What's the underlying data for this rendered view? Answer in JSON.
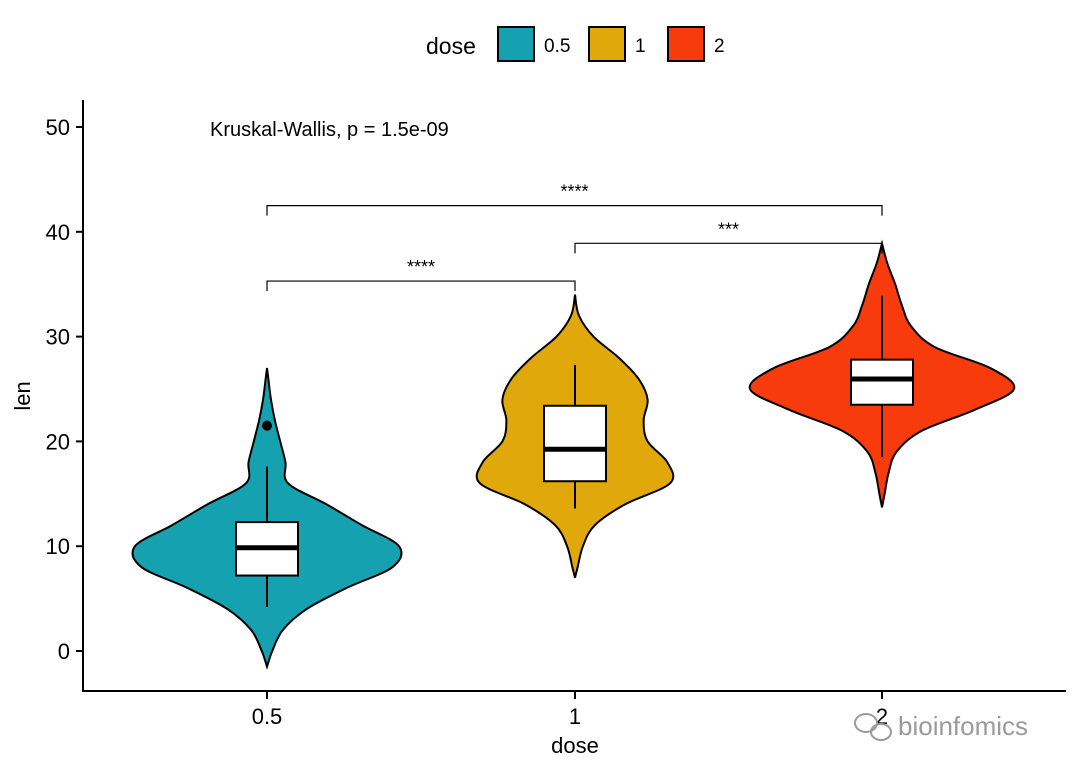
{
  "chart_data": {
    "type": "violin",
    "xlabel": "dose",
    "ylabel": "len",
    "categories": [
      "0.5",
      "1",
      "2"
    ],
    "ylim": [
      -4,
      53
    ],
    "yticks": [
      0,
      10,
      20,
      30,
      40,
      50
    ],
    "grid": false,
    "legend": {
      "title": "dose",
      "position": "top",
      "entries": [
        {
          "label": "0.5",
          "color": "#15A1B0"
        },
        {
          "label": "1",
          "color": "#E0A80A"
        },
        {
          "label": "2",
          "color": "#F73B0C"
        }
      ]
    },
    "annotation": "Kruskal-Wallis, p = 1.5e-09",
    "groups": [
      {
        "name": "0.5",
        "color": "#15A1B0",
        "violin": {
          "y": [
            -1.5,
            0,
            2,
            4,
            6,
            8,
            10,
            12,
            14,
            16,
            18,
            20,
            22,
            24,
            26,
            27
          ],
          "width": [
            0,
            0.04,
            0.12,
            0.3,
            0.6,
            0.95,
            1.0,
            0.72,
            0.45,
            0.16,
            0.14,
            0.1,
            0.06,
            0.03,
            0.01,
            0
          ]
        },
        "box": {
          "min": 4.2,
          "q1": 7.2,
          "median": 9.85,
          "q3": 12.3,
          "max": 17.6
        },
        "outliers": [
          21.5
        ]
      },
      {
        "name": "1",
        "color": "#E0A80A",
        "violin": {
          "y": [
            7,
            8,
            10,
            12,
            14,
            16,
            18,
            20,
            22,
            24,
            26,
            28,
            30,
            32,
            34
          ],
          "width": [
            0,
            0.02,
            0.06,
            0.15,
            0.38,
            0.72,
            0.7,
            0.55,
            0.52,
            0.55,
            0.48,
            0.33,
            0.14,
            0.03,
            0
          ]
        },
        "box": {
          "min": 13.6,
          "q1": 16.2,
          "median": 19.25,
          "q3": 23.4,
          "max": 27.3
        },
        "outliers": []
      },
      {
        "name": "2",
        "color": "#F73B0C",
        "violin": {
          "y": [
            13.7,
            15,
            17,
            19,
            21,
            23,
            25,
            27,
            29,
            31,
            33,
            35,
            37,
            38.9
          ],
          "width": [
            0,
            0.02,
            0.05,
            0.11,
            0.3,
            0.7,
            1.0,
            0.82,
            0.4,
            0.22,
            0.15,
            0.1,
            0.04,
            0
          ]
        },
        "box": {
          "min": 18.5,
          "q1": 23.5,
          "median": 25.95,
          "q3": 27.8,
          "max": 33.9
        },
        "outliers": []
      }
    ],
    "comparisons": [
      {
        "from": "0.5",
        "to": "1",
        "y": 35.3,
        "label": "****"
      },
      {
        "from": "1",
        "to": "2",
        "y": 38.9,
        "label": "***"
      },
      {
        "from": "0.5",
        "to": "2",
        "y": 42.5,
        "label": "****"
      }
    ]
  },
  "watermark": "bioinfomics"
}
